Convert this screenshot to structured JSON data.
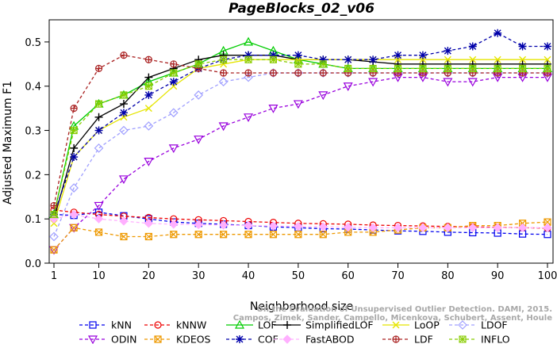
{
  "chart_data": {
    "type": "line",
    "title": "PageBlocks_02_v06",
    "xlabel": "Neighborhood size",
    "ylabel": "Adjusted Maximum F1",
    "xlim": [
      1,
      100
    ],
    "ylim": [
      0,
      0.55
    ],
    "x_ticks": [
      "1",
      "10",
      "20",
      "30",
      "40",
      "50",
      "60",
      "70",
      "80",
      "90",
      "100"
    ],
    "y_ticks": [
      "0.0",
      "0.1",
      "0.2",
      "0.3",
      "0.4",
      "0.5"
    ],
    "grid": false,
    "legend_position": "bottom",
    "x": [
      1,
      5,
      10,
      15,
      20,
      25,
      30,
      35,
      40,
      45,
      50,
      55,
      60,
      65,
      70,
      75,
      80,
      85,
      90,
      95,
      100
    ],
    "series": [
      {
        "name": "kNN",
        "color": "#0000ee",
        "marker": "square",
        "dash": "4,3",
        "values": [
          0.11,
          0.108,
          0.115,
          0.107,
          0.1,
          0.093,
          0.09,
          0.088,
          0.085,
          0.082,
          0.08,
          0.078,
          0.077,
          0.075,
          0.073,
          0.072,
          0.07,
          0.069,
          0.068,
          0.066,
          0.065
        ]
      },
      {
        "name": "kNNW",
        "color": "#ee0000",
        "marker": "circle",
        "dash": "4,3",
        "values": [
          0.12,
          0.115,
          0.11,
          0.106,
          0.103,
          0.1,
          0.098,
          0.096,
          0.094,
          0.092,
          0.09,
          0.089,
          0.088,
          0.086,
          0.085,
          0.084,
          0.083,
          0.082,
          0.081,
          0.08,
          0.079
        ]
      },
      {
        "name": "LOF",
        "color": "#00cc00",
        "marker": "triangle",
        "dash": "",
        "values": [
          0.11,
          0.31,
          0.36,
          0.38,
          0.41,
          0.43,
          0.45,
          0.48,
          0.5,
          0.48,
          0.46,
          0.45,
          0.44,
          0.44,
          0.44,
          0.44,
          0.44,
          0.44,
          0.44,
          0.44,
          0.44
        ]
      },
      {
        "name": "SimplifiedLOF",
        "color": "#000000",
        "marker": "plus",
        "dash": "",
        "values": [
          0.1,
          0.26,
          0.33,
          0.36,
          0.42,
          0.44,
          0.46,
          0.47,
          0.47,
          0.47,
          0.46,
          0.46,
          0.46,
          0.455,
          0.45,
          0.45,
          0.45,
          0.45,
          0.45,
          0.45,
          0.45
        ]
      },
      {
        "name": "LoOP",
        "color": "#e5e500",
        "marker": "x",
        "dash": "",
        "values": [
          0.09,
          0.24,
          0.3,
          0.33,
          0.35,
          0.4,
          0.44,
          0.45,
          0.46,
          0.46,
          0.46,
          0.46,
          0.46,
          0.46,
          0.46,
          0.46,
          0.46,
          0.46,
          0.46,
          0.46,
          0.46
        ]
      },
      {
        "name": "LDOF",
        "color": "#a0a0ff",
        "marker": "diamond",
        "dash": "4,3",
        "values": [
          0.06,
          0.17,
          0.26,
          0.3,
          0.31,
          0.34,
          0.38,
          0.41,
          0.42,
          0.43,
          0.43,
          0.43,
          0.43,
          0.43,
          0.43,
          0.43,
          0.43,
          0.43,
          0.43,
          0.43,
          0.43
        ]
      },
      {
        "name": "ODIN",
        "color": "#9900dd",
        "marker": "triangle-down",
        "dash": "4,3",
        "values": [
          0.03,
          0.08,
          0.13,
          0.19,
          0.23,
          0.26,
          0.28,
          0.31,
          0.33,
          0.35,
          0.36,
          0.38,
          0.4,
          0.41,
          0.42,
          0.42,
          0.41,
          0.41,
          0.42,
          0.42,
          0.42
        ]
      },
      {
        "name": "KDEOS",
        "color": "#ee9900",
        "marker": "square-x",
        "dash": "4,3",
        "values": [
          0.03,
          0.08,
          0.07,
          0.06,
          0.06,
          0.065,
          0.065,
          0.065,
          0.065,
          0.065,
          0.065,
          0.065,
          0.07,
          0.07,
          0.075,
          0.08,
          0.08,
          0.085,
          0.085,
          0.09,
          0.093
        ]
      },
      {
        "name": "COF",
        "color": "#0000aa",
        "marker": "star",
        "dash": "4,3",
        "values": [
          0.11,
          0.24,
          0.3,
          0.34,
          0.38,
          0.41,
          0.44,
          0.46,
          0.47,
          0.47,
          0.47,
          0.46,
          0.46,
          0.46,
          0.47,
          0.47,
          0.48,
          0.49,
          0.52,
          0.49,
          0.49
        ]
      },
      {
        "name": "FastABOD",
        "color": "#ffb0ff",
        "marker": "diamond-filled",
        "dash": "4,3",
        "values": [
          0.1,
          0.11,
          0.1,
          0.095,
          0.09,
          0.088,
          0.087,
          0.086,
          0.085,
          0.084,
          0.083,
          0.082,
          0.081,
          0.08,
          0.08,
          0.08,
          0.08,
          0.08,
          0.08,
          0.08,
          0.08
        ]
      },
      {
        "name": "LDF",
        "color": "#aa2222",
        "marker": "circle-plus",
        "dash": "4,3",
        "values": [
          0.13,
          0.35,
          0.44,
          0.47,
          0.46,
          0.45,
          0.44,
          0.43,
          0.43,
          0.43,
          0.43,
          0.43,
          0.43,
          0.43,
          0.43,
          0.43,
          0.43,
          0.43,
          0.43,
          0.43,
          0.43
        ]
      },
      {
        "name": "INFLO",
        "color": "#88cc00",
        "marker": "square-star",
        "dash": "4,3",
        "values": [
          0.11,
          0.3,
          0.36,
          0.38,
          0.4,
          0.43,
          0.45,
          0.46,
          0.46,
          0.46,
          0.45,
          0.45,
          0.44,
          0.44,
          0.44,
          0.44,
          0.44,
          0.44,
          0.44,
          0.44,
          0.44
        ]
      }
    ],
    "legend_order": [
      "kNN",
      "kNNW",
      "LOF",
      "SimplifiedLOF",
      "LoOP",
      "LDOF",
      "ODIN",
      "KDEOS",
      "COF",
      "FastABOD",
      "LDF",
      "INFLO"
    ],
    "watermark": [
      "Campos, Zimek, Sander, Campello, Micenkova, Schubert, Assent, Houle",
      "On the Evaluation of Unsupervised Outlier Detection. DAMI, 2015."
    ]
  }
}
